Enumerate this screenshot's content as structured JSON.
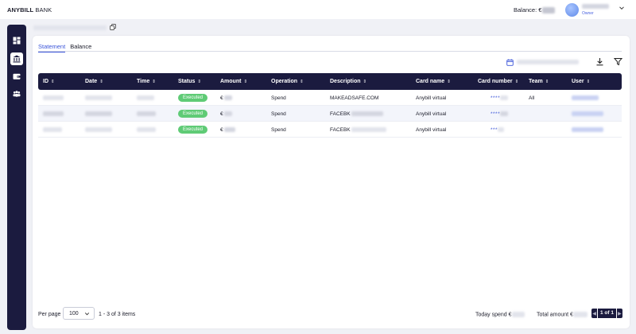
{
  "brand": {
    "name_bold": "ANYBILL",
    "name_light": "BANK"
  },
  "header": {
    "balance_label": "Balance: €",
    "user_role": "Owner"
  },
  "tabs": [
    {
      "label": "Statement",
      "active": true
    },
    {
      "label": "Balance",
      "active": false
    }
  ],
  "table": {
    "columns": [
      "ID",
      "Date",
      "Time",
      "Status",
      "Amount",
      "Operation",
      "Description",
      "Card name",
      "Card number",
      "Team",
      "User"
    ],
    "rows": [
      {
        "status": "Executed",
        "amount_prefix": "€",
        "operation": "Spend",
        "description": "MAKEADSAFE.COM",
        "card_name": "Anybill virtual",
        "card_number": "****",
        "team": "All"
      },
      {
        "status": "Executed",
        "amount_prefix": "€",
        "operation": "Spend",
        "description": "FACEBK",
        "card_name": "Anybill virtual",
        "card_number": "****",
        "team": ""
      },
      {
        "status": "Executed",
        "amount_prefix": "€",
        "operation": "Spend",
        "description": "FACEBK",
        "card_name": "Anybill virtual",
        "card_number": "***",
        "team": ""
      }
    ]
  },
  "footer": {
    "per_page_label": "Per page",
    "per_page_value": "100",
    "items_info": "1 - 3 of 3 items",
    "today_spend_label": "Today spend €",
    "total_amount_label": "Total amount €",
    "page_indicator": "1 of 1"
  },
  "colors": {
    "sidebar": "#1b1b3f",
    "accent": "#3b55d9",
    "status_executed": "#5fcb76"
  },
  "icons": {
    "sidebar": [
      "dashboard-icon",
      "bank-icon",
      "wallet-icon",
      "team-icon"
    ],
    "toolbar": [
      "calendar-icon",
      "download-icon",
      "filter-icon"
    ]
  }
}
